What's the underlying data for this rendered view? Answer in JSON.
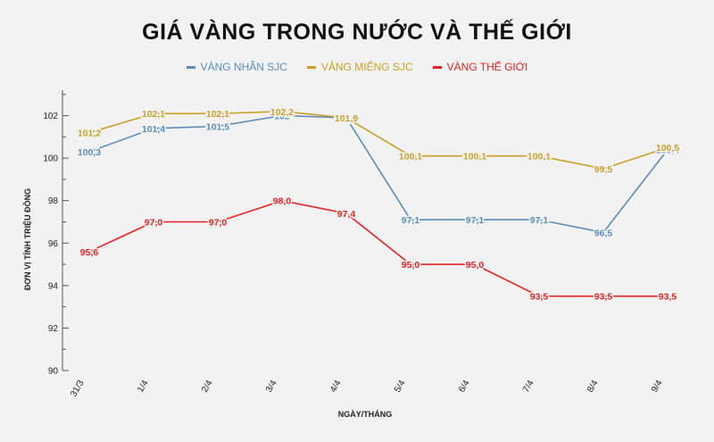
{
  "chart_data": {
    "type": "line",
    "title": "GIÁ VÀNG TRONG NƯỚC VÀ THẾ GIỚI",
    "xlabel": "NGÀY/THÁNG",
    "ylabel": "ĐƠN VỊ TÍNH TRIỆU ĐỒNG",
    "categories": [
      "31/3",
      "1/4",
      "2/4",
      "3/4",
      "4/4",
      "5/4",
      "6/4",
      "7/4",
      "8/4",
      "9/4"
    ],
    "yticks": [
      90,
      92,
      94,
      96,
      98,
      100,
      102
    ],
    "ylim": [
      90,
      103.2
    ],
    "grid": false,
    "legend_position": "top-center",
    "series": [
      {
        "name": "VÀNG NHẪN SJC",
        "color": "#5b8db8",
        "values": [
          100.3,
          101.4,
          101.5,
          102,
          101.9,
          97.1,
          97.1,
          97.1,
          96.5,
          100.4
        ],
        "labels": [
          "100,3",
          "101,4",
          "101,5",
          "102",
          "101,9",
          "97,1",
          "97,1",
          "97,1",
          "96,5",
          "100,4"
        ]
      },
      {
        "name": "VÀNG MIẾNG SJC",
        "color": "#c8a028",
        "values": [
          101.2,
          102.1,
          102.1,
          102.2,
          101.9,
          100.1,
          100.1,
          100.1,
          99.5,
          100.5
        ],
        "labels": [
          "101,2",
          "102,1",
          "102,1",
          "102,2",
          "101,9",
          "100,1",
          "100,1",
          "100,1",
          "99,5",
          "100,5"
        ]
      },
      {
        "name": "VÀNG THẾ GIỚI",
        "color": "#e32222",
        "values": [
          95.6,
          97.0,
          97.0,
          98.0,
          97.4,
          95.0,
          95.0,
          93.5,
          93.5,
          93.5
        ],
        "labels": [
          "95,6",
          "97,0",
          "97,0",
          "98,0",
          "97,4",
          "95,0",
          "95,0",
          "93,5",
          "93,5",
          "93,5"
        ]
      }
    ]
  }
}
